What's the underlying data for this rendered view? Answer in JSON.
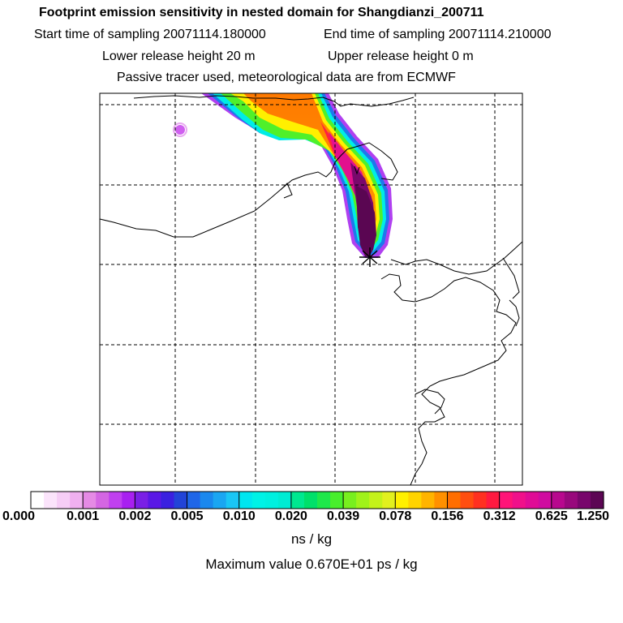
{
  "header": {
    "title": "Footprint emission sensitivity in nested domain for Shangdianzi_200711",
    "start_label": "Start time of sampling 20071114.180000",
    "end_label": "End time of sampling 20071114.210000",
    "lower_label": "Lower release height   20 m",
    "upper_label": "Upper release height    0 m",
    "note": "Passive tracer used, meteorological data are from ECMWF"
  },
  "chart_data": {
    "type": "heatmap",
    "title": "Footprint emission sensitivity in nested domain for Shangdianzi_200711",
    "grid": true,
    "colorbar": {
      "ticks": [
        "0.000",
        "0.001",
        "0.002",
        "0.005",
        "0.010",
        "0.020",
        "0.039",
        "0.078",
        "0.156",
        "0.312",
        "0.625",
        "1.250"
      ],
      "colors": [
        "#ffffff",
        "#fbe4fb",
        "#f6cdf6",
        "#f0b0f0",
        "#e58ae5",
        "#d466e3",
        "#c040ef",
        "#a820f0",
        "#7a1fe6",
        "#5a18e6",
        "#3a20e0",
        "#2244d8",
        "#1f66e8",
        "#1a88ee",
        "#1aa6f2",
        "#1ac6f5",
        "#00e6f0",
        "#00f2e6",
        "#00f0e0",
        "#00ecd4",
        "#00e890",
        "#00e06a",
        "#1ee84a",
        "#48ef2c",
        "#78ef1e",
        "#a0f21a",
        "#c4f21a",
        "#e2f01e",
        "#fff000",
        "#ffd400",
        "#ffb400",
        "#ff9000",
        "#ff6e00",
        "#ff4e10",
        "#ff3020",
        "#ff1a40",
        "#ff1478",
        "#f0108a",
        "#e00c96",
        "#d00ca0",
        "#b8088e",
        "#98087c",
        "#78066c",
        "#5c0654"
      ]
    },
    "units": "ns / kg",
    "max_value_text": "Maximum value  0.670E+01 ps / kg",
    "receptor": "Shangdianzi"
  }
}
